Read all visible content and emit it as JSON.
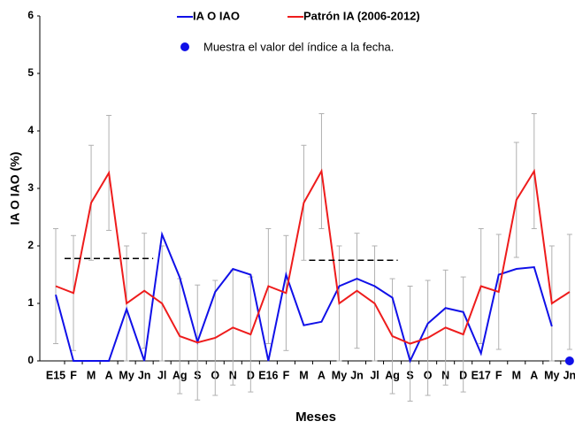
{
  "chart_data": {
    "type": "line",
    "y_label": "IA O IAO (%)",
    "x_label": "Meses",
    "categories": [
      "E15",
      "F",
      "M",
      "A",
      "My",
      "Jn",
      "Jl",
      "Ag",
      "S",
      "O",
      "N",
      "D",
      "E16",
      "F",
      "M",
      "A",
      "My",
      "Jn",
      "Jl",
      "Ag",
      "S",
      "O",
      "N",
      "D",
      "E17",
      "F",
      "M",
      "A",
      "My",
      "Jn"
    ],
    "series": [
      {
        "name": "IA O IAO",
        "color": "#1010e8",
        "values": [
          1.15,
          0,
          0,
          0,
          0.9,
          0,
          2.2,
          1.45,
          0.33,
          1.2,
          1.6,
          1.5,
          0,
          1.5,
          0.62,
          0.68,
          1.3,
          1.43,
          1.3,
          1.1,
          0,
          0.65,
          0.92,
          0.85,
          0.13,
          1.5,
          1.6,
          1.63,
          0.6,
          null
        ]
      },
      {
        "name": "Patrón IA (2006-2012)",
        "color": "#ee1c1c",
        "values": [
          1.3,
          1.18,
          2.75,
          3.27,
          1.0,
          1.22,
          1.0,
          0.43,
          0.32,
          0.4,
          0.58,
          0.46,
          1.3,
          1.18,
          2.75,
          3.3,
          1.0,
          1.22,
          1.0,
          0.43,
          0.3,
          0.4,
          0.58,
          0.46,
          1.3,
          1.2,
          2.8,
          3.3,
          1.0,
          1.2
        ],
        "errors": [
          1,
          1,
          1,
          1,
          1,
          1,
          1,
          1,
          1,
          1,
          1,
          1,
          1,
          1,
          1,
          1,
          1,
          1,
          1,
          1,
          1,
          1,
          1,
          1,
          1,
          1,
          1,
          1,
          1,
          1
        ],
        "error_color": "#b0b0b0"
      }
    ],
    "dashed_lines": [
      {
        "y": 1.78,
        "x": [
          0.5,
          5.5
        ]
      },
      {
        "y": 1.75,
        "x": [
          14.3,
          19.3
        ]
      }
    ],
    "marker": {
      "label": "Muestra el valor del índice a la fecha.",
      "x": 29,
      "value": 0,
      "color": "#1010e8"
    },
    "ylim": [
      0,
      6
    ],
    "yticks": [
      0,
      1,
      2,
      3,
      4,
      5,
      6
    ]
  }
}
